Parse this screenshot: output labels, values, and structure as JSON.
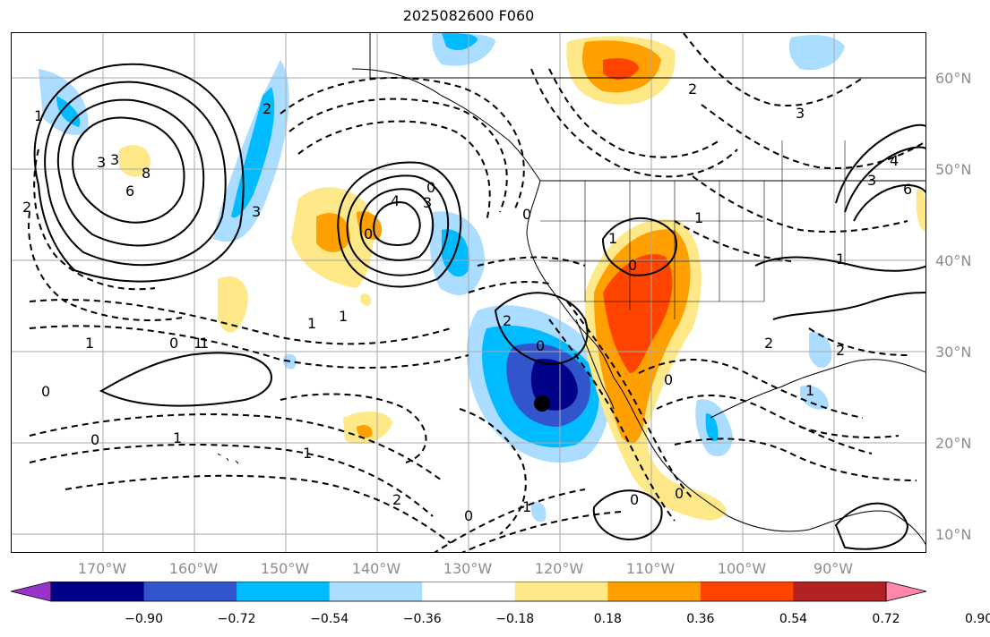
{
  "title": "2025082600 F060",
  "lat_labels": [
    "60°N",
    "50°N",
    "40°N",
    "30°N",
    "20°N",
    "10°N"
  ],
  "lon_labels": [
    "170°W",
    "160°W",
    "150°W",
    "140°W",
    "130°W",
    "120°W",
    "110°W",
    "100°W",
    "90°W"
  ],
  "colorbar": {
    "colors": [
      "#9933cc",
      "#000088",
      "#3355cc",
      "#00bbff",
      "#aaddff",
      "#ffffff",
      "#ffe888",
      "#ffa000",
      "#ff4400",
      "#b22222",
      "#ff88aa"
    ],
    "tick_labels": [
      "−0.90",
      "−0.72",
      "−0.54",
      "−0.36",
      "−0.18",
      "0.18",
      "0.36",
      "0.54",
      "0.72",
      "0.90"
    ]
  },
  "contour_labels": [
    "3",
    "8",
    "6",
    "2",
    "3",
    "4",
    "3",
    "0",
    "0",
    "1",
    "1",
    "0",
    "1",
    "0",
    "1",
    "0",
    "1",
    "2",
    "0",
    "0",
    "1",
    "2",
    "3",
    "2",
    "1",
    "0",
    "0",
    "1",
    "1",
    "2",
    "0",
    "0",
    "1",
    "1",
    "2",
    "3",
    "4",
    "6",
    "1",
    "0",
    "1",
    "2",
    "3"
  ],
  "storm_marker": "center-dot"
}
